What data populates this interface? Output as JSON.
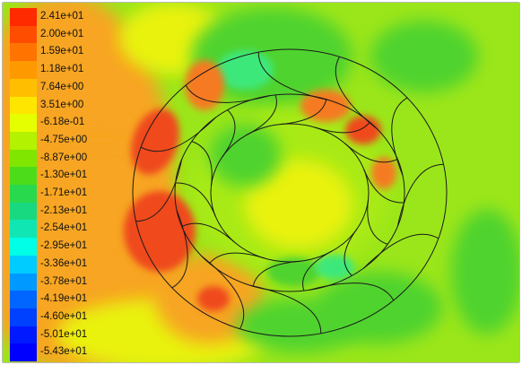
{
  "legend": {
    "labels": [
      "2.41e+01",
      "2.00e+01",
      "1.59e+01",
      "1.18e+01",
      "7.64e+00",
      "3.51e+00",
      "-6.18e-01",
      "-4.75e+00",
      "-8.87e+00",
      "-1.30e+01",
      "-1.71e+01",
      "-2.13e+01",
      "-2.54e+01",
      "-2.95e+01",
      "-3.36e+01",
      "-3.78e+01",
      "-4.19e+01",
      "-4.60e+01",
      "-5.01e+01",
      "-5.43e+01"
    ],
    "colors": [
      "#ff2a00",
      "#ff4d00",
      "#ff7300",
      "#ff9900",
      "#ffbf00",
      "#ffe600",
      "#e6ff00",
      "#b3f200",
      "#80e600",
      "#4ddc1a",
      "#29d94d",
      "#19d980",
      "#10e6b3",
      "#00ffe6",
      "#00ccff",
      "#0099ff",
      "#0066ff",
      "#0040ff",
      "#0019ff",
      "#0000ff"
    ]
  },
  "contour": {
    "colors": {
      "background": "#9be61a",
      "green": "#4fd32e",
      "cyan": "#3ee87a",
      "yellow": "#e9f20a",
      "orange": "#f7a520",
      "deep_orange": "#f57a22",
      "red": "#ef4a1c",
      "line": "#1a1a1a"
    }
  }
}
